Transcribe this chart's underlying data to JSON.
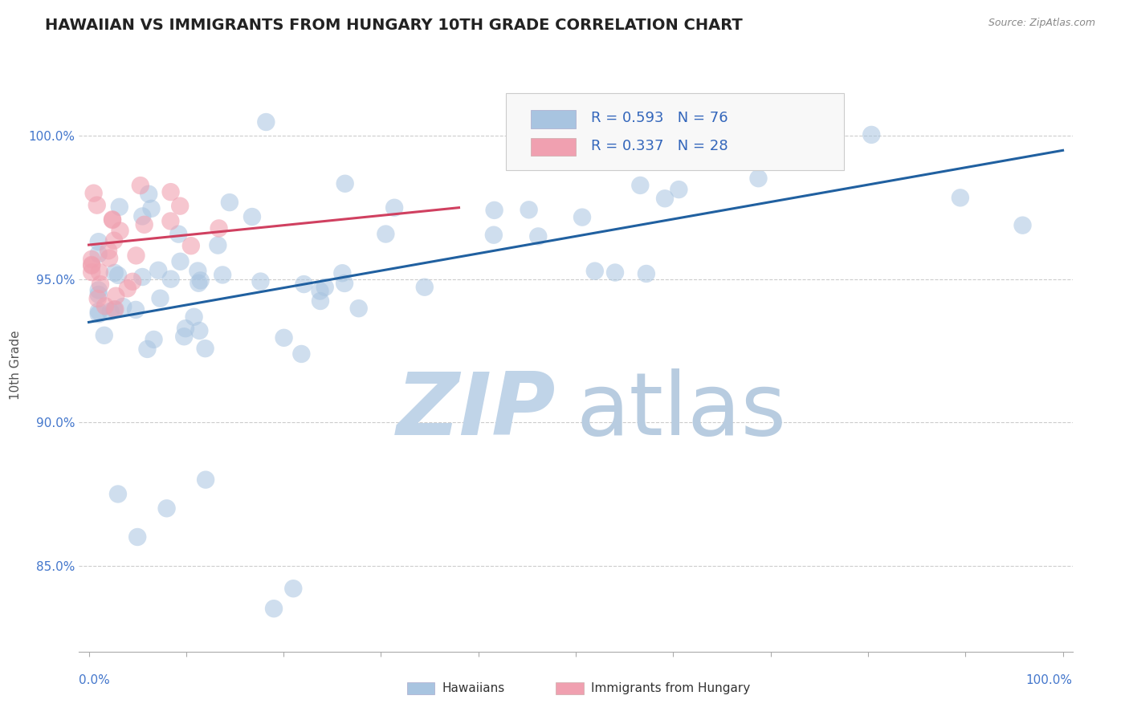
{
  "title": "HAWAIIAN VS IMMIGRANTS FROM HUNGARY 10TH GRADE CORRELATION CHART",
  "source": "Source: ZipAtlas.com",
  "ylabel": "10th Grade",
  "ymin": 82.0,
  "ymax": 102.0,
  "xmin": -0.01,
  "xmax": 1.01,
  "blue_R": 0.593,
  "blue_N": 76,
  "pink_R": 0.337,
  "pink_N": 28,
  "blue_color": "#a8c4e0",
  "blue_line_color": "#2060a0",
  "pink_color": "#f0a0b0",
  "pink_line_color": "#d04060",
  "watermark_zip_color": "#c0d4e8",
  "watermark_atlas_color": "#b8cce0",
  "ytick_positions": [
    85.0,
    90.0,
    95.0,
    100.0
  ],
  "ytick_labels": [
    "85.0%",
    "90.0%",
    "95.0%",
    "100.0%"
  ],
  "blue_line_x0": 0.0,
  "blue_line_x1": 1.0,
  "blue_line_y0": 93.5,
  "blue_line_y1": 99.5,
  "pink_line_x0": 0.0,
  "pink_line_x1": 0.38,
  "pink_line_y0": 96.2,
  "pink_line_y1": 97.5
}
